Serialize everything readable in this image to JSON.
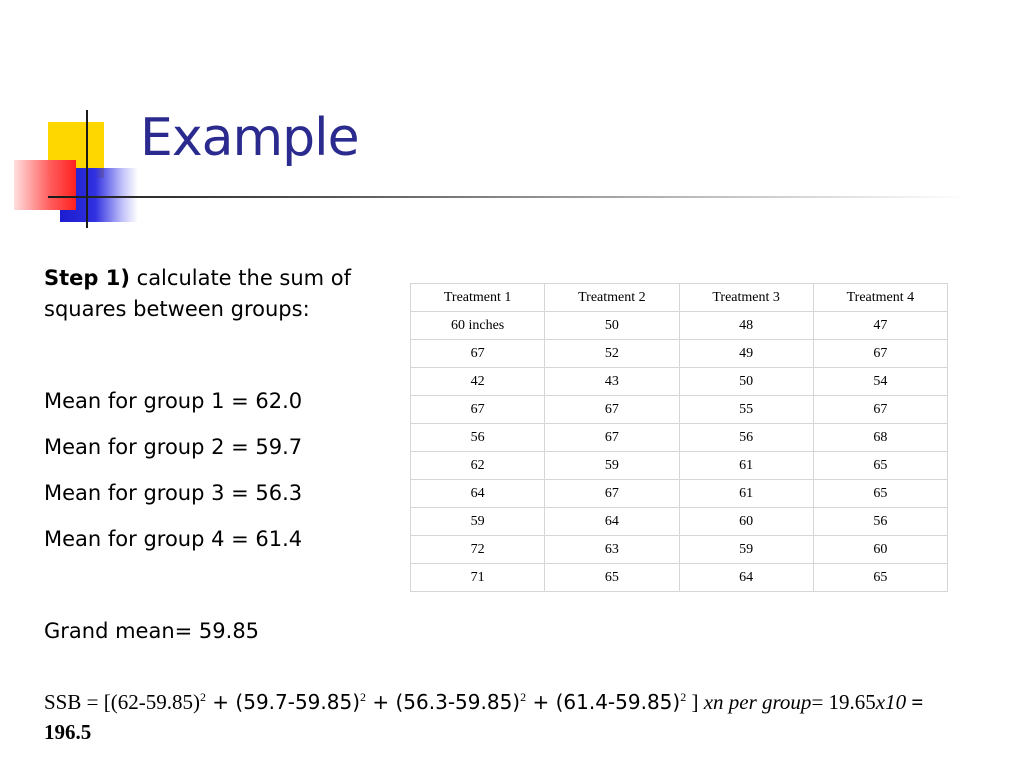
{
  "slide": {
    "title": "Example"
  },
  "step": {
    "label": "Step 1)",
    "text": " calculate the sum of squares between groups:"
  },
  "means": [
    "Mean for group 1 = 62.0",
    "Mean for group 2 = 59.7",
    "Mean for group 3 = 56.3",
    "Mean for group 4 = 61.4"
  ],
  "grand_mean": "Grand mean= 59.85",
  "ssb": {
    "part1": "SSB = [(62-59.85)",
    "sup": "2",
    "part2": " + (59.7-59.85)",
    "part3": " + (56.3-59.85)",
    "part4": " + (61.4-59.85)",
    "part5": " ] ",
    "italic1": "xn per group",
    "part6": "= 19.65",
    "italic2": "x10",
    "part7": " = ",
    "result": "196.5"
  },
  "table": {
    "headers": [
      "Treatment 1",
      "Treatment 2",
      "Treatment 3",
      "Treatment 4"
    ],
    "rows": [
      [
        "60 inches",
        "50",
        "48",
        "47"
      ],
      [
        "67",
        "52",
        "49",
        "67"
      ],
      [
        "42",
        "43",
        "50",
        "54"
      ],
      [
        "67",
        "67",
        "55",
        "67"
      ],
      [
        "56",
        "67",
        "56",
        "68"
      ],
      [
        "62",
        "59",
        "61",
        "65"
      ],
      [
        "64",
        "67",
        "61",
        "65"
      ],
      [
        "59",
        "64",
        "60",
        "56"
      ],
      [
        "72",
        "63",
        "59",
        "60"
      ],
      [
        "71",
        "65",
        "64",
        "65"
      ]
    ]
  }
}
